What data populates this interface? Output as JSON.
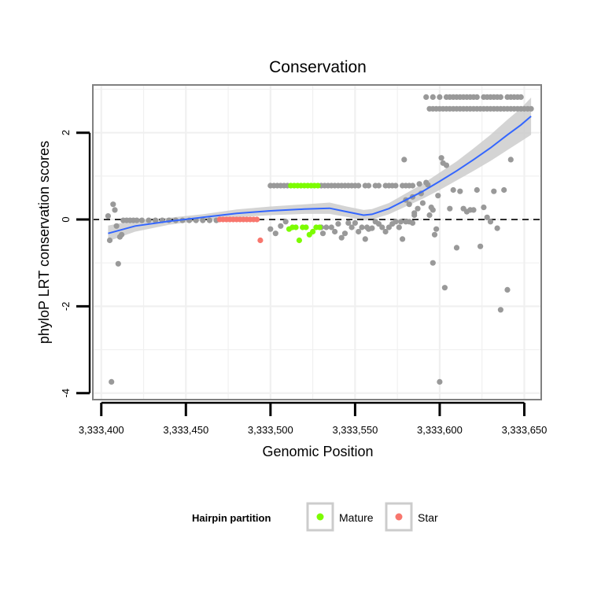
{
  "chart_data": {
    "type": "scatter",
    "title": "Conservation",
    "xlabel": "Genomic Position",
    "ylabel": "phyloP LRT conservation scores",
    "xlim": [
      3333395,
      3333660
    ],
    "ylim": [
      -4.15,
      3.1
    ],
    "x_ticks": [
      3333400,
      3333450,
      3333500,
      3333550,
      3333600,
      3333650
    ],
    "x_tick_labels": [
      "3,333,400",
      "3,333,450",
      "3,333,500",
      "3,333,550",
      "3,333,600",
      "3,333,650"
    ],
    "y_ticks": [
      -4,
      -2,
      0,
      2
    ],
    "y_tick_labels": [
      "-4",
      "-2",
      "0",
      "2"
    ],
    "grid": true,
    "reference_line": {
      "y": 0,
      "style": "dashed"
    },
    "legend": {
      "title": "Hairpin partition",
      "placement": "bottom",
      "entries": [
        {
          "label": "Mature",
          "color": "#7CFC00"
        },
        {
          "label": "Star",
          "color": "#F8766D"
        }
      ]
    },
    "colors": {
      "other": "#999999",
      "mature": "#7CFC00",
      "star": "#F8766D",
      "smooth": "#3366FF",
      "band": "#cccccc"
    },
    "series": [
      {
        "name": "Other",
        "points": [
          [
            3333404,
            0.08
          ],
          [
            3333405,
            -0.48
          ],
          [
            3333406,
            -3.74
          ],
          [
            3333407,
            0.35
          ],
          [
            3333408,
            0.22
          ],
          [
            3333409,
            -0.15
          ],
          [
            3333410,
            -1.02
          ],
          [
            3333411,
            -0.4
          ],
          [
            3333412,
            -0.35
          ],
          [
            3333413,
            -0.02
          ],
          [
            3333415,
            -0.02
          ],
          [
            3333417,
            -0.02
          ],
          [
            3333419,
            -0.02
          ],
          [
            3333421,
            -0.02
          ],
          [
            3333424,
            -0.02
          ],
          [
            3333428,
            -0.02
          ],
          [
            3333432,
            -0.02
          ],
          [
            3333436,
            -0.02
          ],
          [
            3333440,
            -0.02
          ],
          [
            3333444,
            -0.02
          ],
          [
            3333448,
            -0.02
          ],
          [
            3333452,
            -0.02
          ],
          [
            3333456,
            -0.02
          ],
          [
            3333460,
            -0.02
          ],
          [
            3333464,
            -0.02
          ],
          [
            3333468,
            -0.02
          ],
          [
            3333500,
            0.78
          ],
          [
            3333502,
            0.78
          ],
          [
            3333504,
            0.78
          ],
          [
            3333506,
            0.78
          ],
          [
            3333508,
            0.78
          ],
          [
            3333510,
            0.78
          ],
          [
            3333530,
            0.78
          ],
          [
            3333532,
            0.78
          ],
          [
            3333534,
            0.78
          ],
          [
            3333536,
            0.78
          ],
          [
            3333538,
            0.78
          ],
          [
            3333540,
            0.78
          ],
          [
            3333542,
            0.78
          ],
          [
            3333544,
            0.78
          ],
          [
            3333546,
            0.78
          ],
          [
            3333548,
            0.78
          ],
          [
            3333550,
            0.78
          ],
          [
            3333552,
            0.78
          ],
          [
            3333556,
            0.78
          ],
          [
            3333558,
            0.78
          ],
          [
            3333562,
            0.78
          ],
          [
            3333564,
            0.78
          ],
          [
            3333568,
            0.78
          ],
          [
            3333570,
            0.78
          ],
          [
            3333572,
            0.78
          ],
          [
            3333574,
            0.78
          ],
          [
            3333578,
            0.78
          ],
          [
            3333580,
            0.78
          ],
          [
            3333582,
            0.78
          ],
          [
            3333584,
            0.78
          ],
          [
            3333500,
            -0.22
          ],
          [
            3333503,
            -0.32
          ],
          [
            3333506,
            -0.15
          ],
          [
            3333509,
            -0.05
          ],
          [
            3333530,
            -0.18
          ],
          [
            3333531,
            -0.32
          ],
          [
            3333533,
            -0.18
          ],
          [
            3333536,
            -0.18
          ],
          [
            3333538,
            -0.28
          ],
          [
            3333540,
            -0.1
          ],
          [
            3333542,
            -0.42
          ],
          [
            3333544,
            -0.32
          ],
          [
            3333546,
            -0.08
          ],
          [
            3333548,
            -0.18
          ],
          [
            3333550,
            -0.08
          ],
          [
            3333552,
            -0.28
          ],
          [
            3333554,
            -0.18
          ],
          [
            3333556,
            -0.45
          ],
          [
            3333557,
            -0.18
          ],
          [
            3333558,
            -0.22
          ],
          [
            3333560,
            -0.2
          ],
          [
            3333562,
            -0.05
          ],
          [
            3333564,
            -0.1
          ],
          [
            3333566,
            -0.18
          ],
          [
            3333568,
            -0.28
          ],
          [
            3333570,
            -0.18
          ],
          [
            3333572,
            -0.1
          ],
          [
            3333574,
            -0.05
          ],
          [
            3333576,
            -0.18
          ],
          [
            3333577,
            -0.05
          ],
          [
            3333578,
            -0.45
          ],
          [
            3333580,
            -0.05
          ],
          [
            3333582,
            -0.05
          ],
          [
            3333584,
            -0.08
          ],
          [
            3333585,
            0.1
          ],
          [
            3333579,
            1.38
          ],
          [
            3333580,
            0.45
          ],
          [
            3333582,
            0.35
          ],
          [
            3333584,
            0.52
          ],
          [
            3333585,
            0.15
          ],
          [
            3333587,
            0.25
          ],
          [
            3333588,
            0.82
          ],
          [
            3333589,
            0.6
          ],
          [
            3333590,
            0.38
          ],
          [
            3333592,
            0.85
          ],
          [
            3333593,
            0.8
          ],
          [
            3333594,
            0.1
          ],
          [
            3333595,
            0.28
          ],
          [
            3333596,
            0.22
          ],
          [
            3333596,
            -1.0
          ],
          [
            3333597,
            -0.35
          ],
          [
            3333598,
            -0.22
          ],
          [
            3333599,
            0.55
          ],
          [
            3333600,
            -3.74
          ],
          [
            3333601,
            1.42
          ],
          [
            3333602,
            1.3
          ],
          [
            3333603,
            -1.57
          ],
          [
            3333604,
            1.25
          ],
          [
            3333606,
            0.25
          ],
          [
            3333608,
            0.68
          ],
          [
            3333610,
            -0.65
          ],
          [
            3333612,
            0.65
          ],
          [
            3333614,
            0.25
          ],
          [
            3333616,
            0.18
          ],
          [
            3333618,
            0.22
          ],
          [
            3333620,
            0.22
          ],
          [
            3333622,
            0.68
          ],
          [
            3333624,
            -0.62
          ],
          [
            3333626,
            0.28
          ],
          [
            3333628,
            0.05
          ],
          [
            3333630,
            -0.05
          ],
          [
            3333632,
            0.65
          ],
          [
            3333634,
            -0.2
          ],
          [
            3333636,
            -2.08
          ],
          [
            3333638,
            0.68
          ],
          [
            3333640,
            -1.62
          ],
          [
            3333642,
            1.38
          ],
          [
            3333592,
            2.82
          ],
          [
            3333596,
            2.82
          ],
          [
            3333600,
            2.82
          ],
          [
            3333604,
            2.82
          ],
          [
            3333606,
            2.82
          ],
          [
            3333608,
            2.82
          ],
          [
            3333610,
            2.82
          ],
          [
            3333612,
            2.82
          ],
          [
            3333614,
            2.82
          ],
          [
            3333616,
            2.82
          ],
          [
            3333618,
            2.82
          ],
          [
            3333620,
            2.82
          ],
          [
            3333622,
            2.82
          ],
          [
            3333626,
            2.82
          ],
          [
            3333628,
            2.82
          ],
          [
            3333630,
            2.82
          ],
          [
            3333632,
            2.82
          ],
          [
            3333634,
            2.82
          ],
          [
            3333636,
            2.82
          ],
          [
            3333640,
            2.82
          ],
          [
            3333642,
            2.82
          ],
          [
            3333644,
            2.82
          ],
          [
            3333646,
            2.82
          ],
          [
            3333648,
            2.82
          ],
          [
            3333594,
            2.55
          ],
          [
            3333596,
            2.55
          ],
          [
            3333598,
            2.55
          ],
          [
            3333600,
            2.55
          ],
          [
            3333602,
            2.55
          ],
          [
            3333604,
            2.55
          ],
          [
            3333606,
            2.55
          ],
          [
            3333608,
            2.55
          ],
          [
            3333610,
            2.55
          ],
          [
            3333612,
            2.55
          ],
          [
            3333614,
            2.55
          ],
          [
            3333616,
            2.55
          ],
          [
            3333618,
            2.55
          ],
          [
            3333620,
            2.55
          ],
          [
            3333622,
            2.55
          ],
          [
            3333624,
            2.55
          ],
          [
            3333626,
            2.55
          ],
          [
            3333628,
            2.55
          ],
          [
            3333630,
            2.55
          ],
          [
            3333632,
            2.55
          ],
          [
            3333634,
            2.55
          ],
          [
            3333636,
            2.55
          ],
          [
            3333638,
            2.55
          ],
          [
            3333640,
            2.55
          ],
          [
            3333642,
            2.55
          ],
          [
            3333644,
            2.55
          ],
          [
            3333646,
            2.55
          ],
          [
            3333648,
            2.55
          ],
          [
            3333650,
            2.55
          ],
          [
            3333652,
            2.55
          ],
          [
            3333654,
            2.55
          ]
        ]
      },
      {
        "name": "Mature",
        "points": [
          [
            3333512,
            0.78
          ],
          [
            3333514,
            0.78
          ],
          [
            3333516,
            0.78
          ],
          [
            3333518,
            0.78
          ],
          [
            3333520,
            0.78
          ],
          [
            3333522,
            0.78
          ],
          [
            3333524,
            0.78
          ],
          [
            3333526,
            0.78
          ],
          [
            3333528,
            0.78
          ],
          [
            3333511,
            -0.22
          ],
          [
            3333513,
            -0.18
          ],
          [
            3333515,
            -0.18
          ],
          [
            3333517,
            -0.48
          ],
          [
            3333519,
            -0.18
          ],
          [
            3333521,
            -0.18
          ],
          [
            3333523,
            -0.35
          ],
          [
            3333525,
            -0.28
          ],
          [
            3333527,
            -0.18
          ],
          [
            3333529,
            -0.18
          ]
        ]
      },
      {
        "name": "Star",
        "points": [
          [
            3333470,
            0.0
          ],
          [
            3333472,
            0.0
          ],
          [
            3333474,
            0.0
          ],
          [
            3333476,
            0.0
          ],
          [
            3333478,
            0.0
          ],
          [
            3333480,
            0.0
          ],
          [
            3333482,
            0.0
          ],
          [
            3333484,
            0.0
          ],
          [
            3333486,
            0.0
          ],
          [
            3333488,
            0.0
          ],
          [
            3333490,
            0.0
          ],
          [
            3333492,
            0.0
          ],
          [
            3333494,
            -0.48
          ]
        ]
      }
    ],
    "smooth": {
      "x": [
        3333404,
        3333420,
        3333440,
        3333460,
        3333480,
        3333500,
        3333520,
        3333535,
        3333545,
        3333555,
        3333560,
        3333570,
        3333580,
        3333590,
        3333600,
        3333610,
        3333620,
        3333630,
        3333640,
        3333648,
        3333654
      ],
      "y": [
        -0.32,
        -0.15,
        -0.04,
        0.05,
        0.14,
        0.2,
        0.24,
        0.26,
        0.18,
        0.1,
        0.12,
        0.25,
        0.45,
        0.65,
        0.88,
        1.12,
        1.38,
        1.65,
        1.95,
        2.18,
        2.38
      ],
      "lower": [
        -0.5,
        -0.28,
        -0.12,
        -0.02,
        0.05,
        0.1,
        0.13,
        0.13,
        0.06,
        -0.02,
        0.0,
        0.12,
        0.3,
        0.48,
        0.68,
        0.9,
        1.12,
        1.35,
        1.6,
        1.8,
        1.95
      ],
      "upper": [
        -0.14,
        -0.02,
        0.04,
        0.12,
        0.23,
        0.3,
        0.35,
        0.39,
        0.3,
        0.22,
        0.24,
        0.38,
        0.6,
        0.82,
        1.08,
        1.34,
        1.64,
        1.95,
        2.3,
        2.56,
        2.81
      ]
    }
  }
}
